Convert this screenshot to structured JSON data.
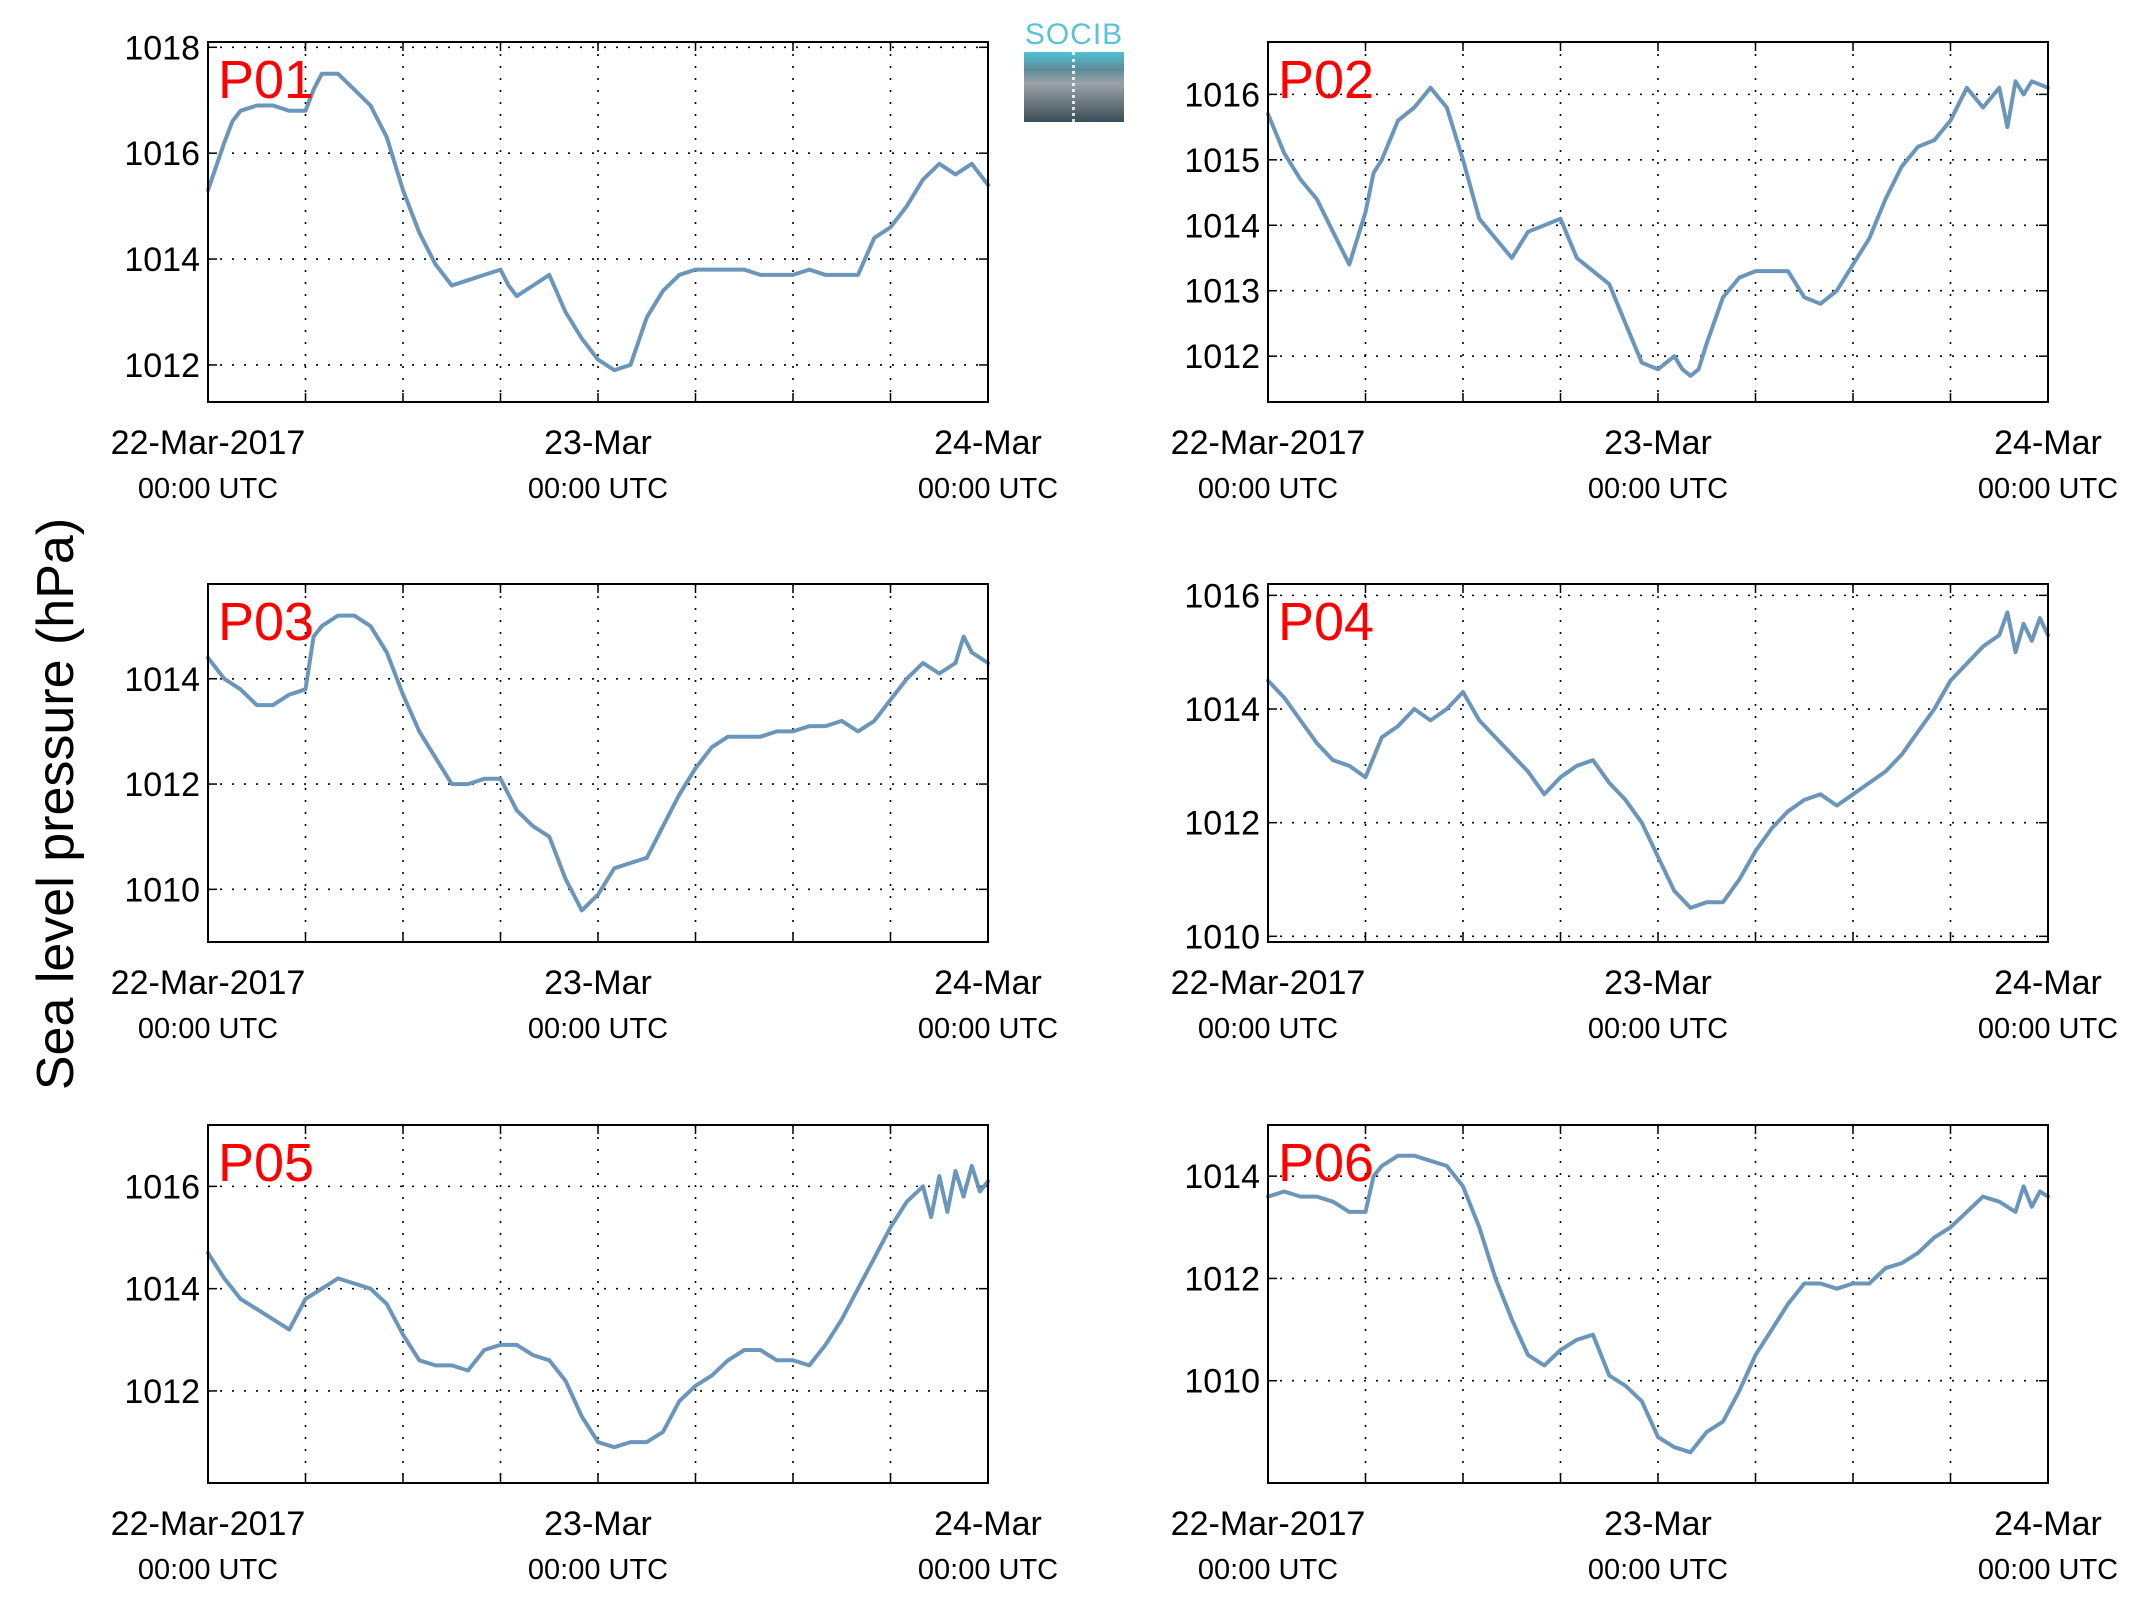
{
  "figure": {
    "ylabel": "Sea level pressure (hPa)",
    "logo_text": "SOCIB",
    "line_color": "#6b96bb",
    "station_label_color": "#ff0000"
  },
  "chart_data": [
    {
      "type": "line",
      "station": "P01",
      "xlabels": [
        {
          "main": "22-Mar-2017",
          "sub": "00:00 UTC"
        },
        {
          "main": "23-Mar",
          "sub": "00:00 UTC"
        },
        {
          "main": "24-Mar",
          "sub": "00:00 UTC"
        }
      ],
      "xlim_hours": [
        0,
        48
      ],
      "ylim": [
        1011.3,
        1018.1
      ],
      "yticks": [
        1012,
        1014,
        1016,
        1018
      ],
      "grid": true,
      "x_hours": [
        0,
        1,
        1.5,
        2,
        3,
        4,
        5,
        6,
        6.5,
        7,
        8,
        9,
        10,
        11,
        12,
        13,
        14,
        15,
        16,
        17,
        18,
        18.5,
        19,
        20,
        21,
        22,
        23,
        24,
        25,
        26,
        27,
        28,
        29,
        30,
        31,
        32,
        33,
        34,
        35,
        36,
        37,
        38,
        39,
        40,
        41,
        42,
        43,
        44,
        45,
        46,
        47,
        48
      ],
      "y": [
        1015.3,
        1016.2,
        1016.6,
        1016.8,
        1016.9,
        1016.9,
        1016.8,
        1016.8,
        1017.2,
        1017.5,
        1017.5,
        1017.2,
        1016.9,
        1016.3,
        1015.3,
        1014.5,
        1013.9,
        1013.5,
        1013.6,
        1013.7,
        1013.8,
        1013.5,
        1013.3,
        1013.5,
        1013.7,
        1013.0,
        1012.5,
        1012.1,
        1011.9,
        1012.0,
        1012.9,
        1013.4,
        1013.7,
        1013.8,
        1013.8,
        1013.8,
        1013.8,
        1013.7,
        1013.7,
        1013.7,
        1013.8,
        1013.7,
        1013.7,
        1013.7,
        1014.4,
        1014.6,
        1015.0,
        1015.5,
        1015.8,
        1015.6,
        1015.8,
        1015.4
      ]
    },
    {
      "type": "line",
      "station": "P02",
      "xlabels": [
        {
          "main": "22-Mar-2017",
          "sub": "00:00 UTC"
        },
        {
          "main": "23-Mar",
          "sub": "00:00 UTC"
        },
        {
          "main": "24-Mar",
          "sub": "00:00 UTC"
        }
      ],
      "xlim_hours": [
        0,
        48
      ],
      "ylim": [
        1011.3,
        1016.8
      ],
      "yticks": [
        1012,
        1013,
        1014,
        1015,
        1016
      ],
      "grid": true,
      "x_hours": [
        0,
        1,
        2,
        3,
        4,
        5,
        6,
        6.5,
        7,
        8,
        9,
        10,
        11,
        12,
        13,
        14,
        15,
        16,
        17,
        18,
        19,
        20,
        21,
        22,
        23,
        24,
        25,
        25.5,
        26,
        26.5,
        27,
        28,
        29,
        30,
        31,
        32,
        33,
        34,
        35,
        36,
        37,
        38,
        39,
        40,
        41,
        42,
        43,
        44,
        45,
        45.5,
        46,
        46.5,
        47,
        48
      ],
      "y": [
        1015.7,
        1015.1,
        1014.7,
        1014.4,
        1013.9,
        1013.4,
        1014.2,
        1014.8,
        1015.0,
        1015.6,
        1015.8,
        1016.1,
        1015.8,
        1015.0,
        1014.1,
        1013.8,
        1013.5,
        1013.9,
        1014.0,
        1014.1,
        1013.5,
        1013.3,
        1013.1,
        1012.5,
        1011.9,
        1011.8,
        1012.0,
        1011.8,
        1011.7,
        1011.8,
        1012.2,
        1012.9,
        1013.2,
        1013.3,
        1013.3,
        1013.3,
        1012.9,
        1012.8,
        1013.0,
        1013.4,
        1013.8,
        1014.4,
        1014.9,
        1015.2,
        1015.3,
        1015.6,
        1016.1,
        1015.8,
        1016.1,
        1015.5,
        1016.2,
        1016.0,
        1016.2,
        1016.1
      ]
    },
    {
      "type": "line",
      "station": "P03",
      "xlabels": [
        {
          "main": "22-Mar-2017",
          "sub": "00:00 UTC"
        },
        {
          "main": "23-Mar",
          "sub": "00:00 UTC"
        },
        {
          "main": "24-Mar",
          "sub": "00:00 UTC"
        }
      ],
      "xlim_hours": [
        0,
        48
      ],
      "ylim": [
        1009.0,
        1015.8
      ],
      "yticks": [
        1010,
        1012,
        1014
      ],
      "grid": true,
      "x_hours": [
        0,
        1,
        2,
        3,
        4,
        5,
        6,
        6.5,
        7,
        8,
        9,
        10,
        11,
        12,
        13,
        14,
        15,
        16,
        17,
        18,
        19,
        20,
        21,
        22,
        23,
        24,
        25,
        26,
        27,
        28,
        29,
        30,
        31,
        32,
        33,
        34,
        35,
        36,
        37,
        38,
        39,
        40,
        41,
        42,
        43,
        44,
        45,
        46,
        46.5,
        47,
        48
      ],
      "y": [
        1014.4,
        1014.0,
        1013.8,
        1013.5,
        1013.5,
        1013.7,
        1013.8,
        1014.8,
        1015.0,
        1015.2,
        1015.2,
        1015.0,
        1014.5,
        1013.7,
        1013.0,
        1012.5,
        1012.0,
        1012.0,
        1012.1,
        1012.1,
        1011.5,
        1011.2,
        1011.0,
        1010.2,
        1009.6,
        1009.9,
        1010.4,
        1010.5,
        1010.6,
        1011.2,
        1011.8,
        1012.3,
        1012.7,
        1012.9,
        1012.9,
        1012.9,
        1013.0,
        1013.0,
        1013.1,
        1013.1,
        1013.2,
        1013.0,
        1013.2,
        1013.6,
        1014.0,
        1014.3,
        1014.1,
        1014.3,
        1014.8,
        1014.5,
        1014.3
      ]
    },
    {
      "type": "line",
      "station": "P04",
      "xlabels": [
        {
          "main": "22-Mar-2017",
          "sub": "00:00 UTC"
        },
        {
          "main": "23-Mar",
          "sub": "00:00 UTC"
        },
        {
          "main": "24-Mar",
          "sub": "00:00 UTC"
        }
      ],
      "xlim_hours": [
        0,
        48
      ],
      "ylim": [
        1009.9,
        1016.2
      ],
      "yticks": [
        1010,
        1012,
        1014,
        1016
      ],
      "grid": true,
      "x_hours": [
        0,
        1,
        2,
        3,
        4,
        5,
        6,
        7,
        8,
        9,
        10,
        11,
        12,
        13,
        14,
        15,
        16,
        17,
        18,
        19,
        20,
        21,
        22,
        23,
        24,
        25,
        26,
        27,
        28,
        29,
        30,
        31,
        32,
        33,
        34,
        35,
        36,
        37,
        38,
        39,
        40,
        41,
        42,
        43,
        44,
        45,
        45.5,
        46,
        46.5,
        47,
        47.5,
        48
      ],
      "y": [
        1014.5,
        1014.2,
        1013.8,
        1013.4,
        1013.1,
        1013.0,
        1012.8,
        1013.5,
        1013.7,
        1014.0,
        1013.8,
        1014.0,
        1014.3,
        1013.8,
        1013.5,
        1013.2,
        1012.9,
        1012.5,
        1012.8,
        1013.0,
        1013.1,
        1012.7,
        1012.4,
        1012.0,
        1011.4,
        1010.8,
        1010.5,
        1010.6,
        1010.6,
        1011.0,
        1011.5,
        1011.9,
        1012.2,
        1012.4,
        1012.5,
        1012.3,
        1012.5,
        1012.7,
        1012.9,
        1013.2,
        1013.6,
        1014.0,
        1014.5,
        1014.8,
        1015.1,
        1015.3,
        1015.7,
        1015.0,
        1015.5,
        1015.2,
        1015.6,
        1015.3
      ]
    },
    {
      "type": "line",
      "station": "P05",
      "xlabels": [
        {
          "main": "22-Mar-2017",
          "sub": "00:00 UTC"
        },
        {
          "main": "23-Mar",
          "sub": "00:00 UTC"
        },
        {
          "main": "24-Mar",
          "sub": "00:00 UTC"
        }
      ],
      "xlim_hours": [
        0,
        48
      ],
      "ylim": [
        1010.2,
        1017.2
      ],
      "yticks": [
        1012,
        1014,
        1016
      ],
      "grid": true,
      "x_hours": [
        0,
        1,
        2,
        3,
        4,
        5,
        6,
        7,
        8,
        9,
        10,
        11,
        12,
        13,
        14,
        15,
        16,
        17,
        18,
        19,
        20,
        21,
        22,
        23,
        24,
        25,
        26,
        27,
        28,
        29,
        30,
        31,
        32,
        33,
        34,
        35,
        36,
        37,
        38,
        39,
        40,
        41,
        42,
        43,
        44,
        44.5,
        45,
        45.5,
        46,
        46.5,
        47,
        47.5,
        48
      ],
      "y": [
        1014.7,
        1014.2,
        1013.8,
        1013.6,
        1013.4,
        1013.2,
        1013.8,
        1014.0,
        1014.2,
        1014.1,
        1014.0,
        1013.7,
        1013.1,
        1012.6,
        1012.5,
        1012.5,
        1012.4,
        1012.8,
        1012.9,
        1012.9,
        1012.7,
        1012.6,
        1012.2,
        1011.5,
        1011.0,
        1010.9,
        1011.0,
        1011.0,
        1011.2,
        1011.8,
        1012.1,
        1012.3,
        1012.6,
        1012.8,
        1012.8,
        1012.6,
        1012.6,
        1012.5,
        1012.9,
        1013.4,
        1014.0,
        1014.6,
        1015.2,
        1015.7,
        1016.0,
        1015.4,
        1016.2,
        1015.5,
        1016.3,
        1015.8,
        1016.4,
        1015.9,
        1016.1
      ]
    },
    {
      "type": "line",
      "station": "P06",
      "xlabels": [
        {
          "main": "22-Mar-2017",
          "sub": "00:00 UTC"
        },
        {
          "main": "23-Mar",
          "sub": "00:00 UTC"
        },
        {
          "main": "24-Mar",
          "sub": "00:00 UTC"
        }
      ],
      "xlim_hours": [
        0,
        48
      ],
      "ylim": [
        1008.0,
        1015.0
      ],
      "yticks": [
        1010,
        1012,
        1014
      ],
      "grid": true,
      "x_hours": [
        0,
        1,
        2,
        3,
        4,
        5,
        6,
        6.5,
        7,
        8,
        9,
        10,
        11,
        12,
        13,
        14,
        15,
        16,
        17,
        18,
        19,
        20,
        21,
        22,
        23,
        24,
        25,
        26,
        27,
        28,
        29,
        30,
        31,
        32,
        33,
        34,
        35,
        36,
        37,
        38,
        39,
        40,
        41,
        42,
        43,
        44,
        45,
        46,
        46.5,
        47,
        47.5,
        48
      ],
      "y": [
        1013.6,
        1013.7,
        1013.6,
        1013.6,
        1013.5,
        1013.3,
        1013.3,
        1014.0,
        1014.2,
        1014.4,
        1014.4,
        1014.3,
        1014.2,
        1013.8,
        1013.0,
        1012.0,
        1011.2,
        1010.5,
        1010.3,
        1010.6,
        1010.8,
        1010.9,
        1010.1,
        1009.9,
        1009.6,
        1008.9,
        1008.7,
        1008.6,
        1009.0,
        1009.2,
        1009.8,
        1010.5,
        1011.0,
        1011.5,
        1011.9,
        1011.9,
        1011.8,
        1011.9,
        1011.9,
        1012.2,
        1012.3,
        1012.5,
        1012.8,
        1013.0,
        1013.3,
        1013.6,
        1013.5,
        1013.3,
        1013.8,
        1013.4,
        1013.7,
        1013.6
      ]
    }
  ]
}
